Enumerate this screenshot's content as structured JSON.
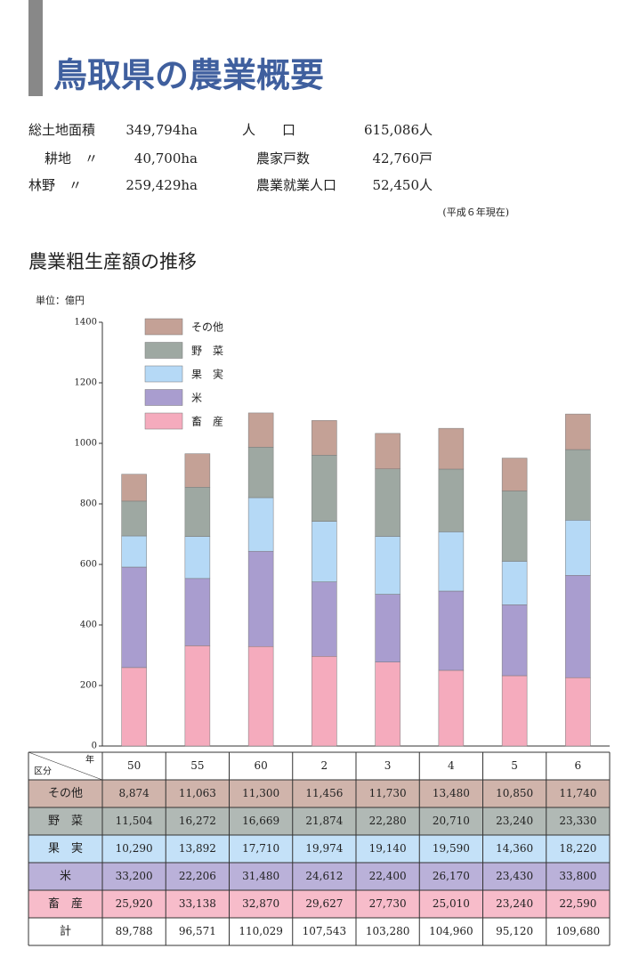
{
  "header": {
    "title": "鳥取県の農業概要"
  },
  "stats": {
    "rows": [
      [
        "総土地面積",
        "349,794ha",
        "人　　口",
        "615,086人"
      ],
      [
        "耕地　〃",
        "40,700ha",
        "農家戸数",
        "42,760戸"
      ],
      [
        "林野　〃",
        "259,429ha",
        "農業就業人口",
        "52,450人"
      ]
    ],
    "note": "(平成６年現在)"
  },
  "section_title": "農業粗生産額の推移",
  "chart_data": {
    "type": "stacked_bar",
    "y_label": "単位：億円",
    "x_label": "年",
    "categories": [
      "50",
      "55",
      "60",
      "2",
      "3",
      "4",
      "5",
      "6"
    ],
    "ylim": [
      0,
      1400
    ],
    "yticks": [
      0,
      200,
      400,
      600,
      800,
      1000,
      1200,
      1400
    ],
    "series": [
      {
        "name": "その他",
        "color": "#c4a196",
        "values": [
          88.74,
          110.63,
          113.0,
          114.56,
          117.3,
          134.8,
          108.5,
          117.4
        ],
        "value_labels": [
          "8,874",
          "11,063",
          "11,300",
          "11,456",
          "11,730",
          "13,480",
          "10,850",
          "11,740"
        ]
      },
      {
        "name": "野　菜",
        "color": "#9ea8a2",
        "values": [
          115.04,
          162.72,
          166.69,
          218.74,
          222.8,
          207.1,
          232.4,
          233.3
        ],
        "value_labels": [
          "11,504",
          "16,272",
          "16,669",
          "21,874",
          "22,280",
          "20,710",
          "23,240",
          "23,330"
        ]
      },
      {
        "name": "果　実",
        "color": "#b5d9f6",
        "values": [
          102.9,
          138.92,
          177.1,
          199.74,
          191.4,
          195.9,
          143.6,
          182.2
        ],
        "value_labels": [
          "10,290",
          "13,892",
          "17,710",
          "19,974",
          "19,140",
          "19,590",
          "14,360",
          "18,220"
        ]
      },
      {
        "name": "米",
        "color": "#a99dcf",
        "values": [
          332.0,
          222.06,
          314.8,
          246.12,
          224.0,
          261.7,
          234.3,
          338.0
        ],
        "value_labels": [
          "33,200",
          "22,206",
          "31,480",
          "24,612",
          "22,400",
          "26,170",
          "23,430",
          "33,800"
        ]
      },
      {
        "name": "畜　産",
        "color": "#f5abbd",
        "values": [
          259.2,
          331.38,
          328.7,
          296.27,
          277.3,
          250.1,
          232.4,
          225.9
        ],
        "value_labels": [
          "25,920",
          "33,138",
          "32,870",
          "29,627",
          "27,730",
          "25,010",
          "23,240",
          "22,590"
        ]
      }
    ]
  },
  "table": {
    "corner": "区分",
    "total_label": "計",
    "totals": [
      "89,788",
      "96,571",
      "110,029",
      "107,543",
      "103,280",
      "104,960",
      "95,120",
      "109,680"
    ]
  }
}
